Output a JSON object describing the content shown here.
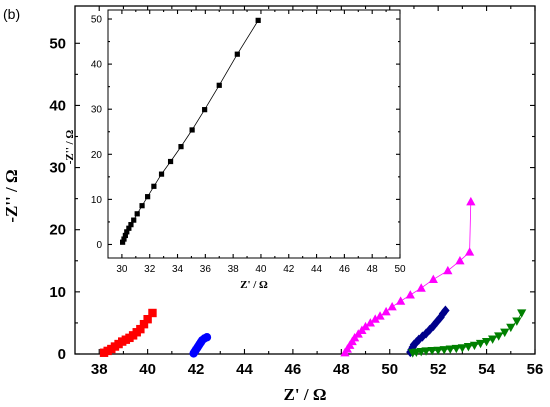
{
  "panel_label": "(b)",
  "chart_data": [
    {
      "type": "scatter",
      "role": "main",
      "xlabel": "Z' / Ω",
      "ylabel": "-Z'' / Ω",
      "xlim": [
        37,
        56
      ],
      "ylim": [
        0,
        56
      ],
      "xticks": [
        38,
        40,
        42,
        44,
        46,
        48,
        50,
        52,
        54,
        56
      ],
      "yticks": [
        0,
        10,
        20,
        30,
        40,
        50
      ],
      "series": [
        {
          "marker": "square",
          "color": "#ff0000",
          "connect": false,
          "points": [
            [
              38.2,
              0.2
            ],
            [
              38.35,
              0.5
            ],
            [
              38.5,
              0.8
            ],
            [
              38.65,
              1.2
            ],
            [
              38.8,
              1.6
            ],
            [
              38.95,
              2.0
            ],
            [
              39.1,
              2.3
            ],
            [
              39.25,
              2.6
            ],
            [
              39.4,
              3.0
            ],
            [
              39.55,
              3.5
            ],
            [
              39.7,
              4.0
            ],
            [
              39.85,
              4.8
            ],
            [
              40.0,
              5.6
            ],
            [
              40.2,
              6.6
            ]
          ]
        },
        {
          "marker": "circle",
          "color": "#0000ff",
          "connect": false,
          "points": [
            [
              41.9,
              0.1
            ],
            [
              41.95,
              0.4
            ],
            [
              42.0,
              0.7
            ],
            [
              42.05,
              1.0
            ],
            [
              42.1,
              1.3
            ],
            [
              42.15,
              1.6
            ],
            [
              42.2,
              1.9
            ],
            [
              42.25,
              2.2
            ],
            [
              42.35,
              2.5
            ],
            [
              42.45,
              2.7
            ]
          ]
        },
        {
          "marker": "triangle-up",
          "color": "#ff00ff",
          "connect": true,
          "points": [
            [
              48.15,
              0.2
            ],
            [
              48.25,
              0.8
            ],
            [
              48.35,
              1.4
            ],
            [
              48.45,
              2.0
            ],
            [
              48.55,
              2.6
            ],
            [
              48.7,
              3.2
            ],
            [
              48.85,
              3.8
            ],
            [
              49.0,
              4.4
            ],
            [
              49.2,
              5.0
            ],
            [
              49.4,
              5.6
            ],
            [
              49.6,
              6.1
            ],
            [
              49.85,
              6.8
            ],
            [
              50.1,
              7.6
            ],
            [
              50.45,
              8.5
            ],
            [
              50.85,
              9.5
            ],
            [
              51.3,
              10.6
            ],
            [
              51.8,
              12.0
            ],
            [
              52.4,
              13.4
            ],
            [
              52.9,
              15.0
            ],
            [
              53.3,
              16.4
            ],
            [
              53.35,
              24.5
            ]
          ]
        },
        {
          "marker": "diamond",
          "color": "#00008b",
          "connect": true,
          "points": [
            [
              50.85,
              0.3
            ],
            [
              50.9,
              0.7
            ],
            [
              50.95,
              1.1
            ],
            [
              51.0,
              1.5
            ],
            [
              51.1,
              1.9
            ],
            [
              51.2,
              2.3
            ],
            [
              51.35,
              2.8
            ],
            [
              51.5,
              3.3
            ],
            [
              51.65,
              3.9
            ],
            [
              51.8,
              4.5
            ],
            [
              51.95,
              5.2
            ],
            [
              52.1,
              5.9
            ],
            [
              52.2,
              6.5
            ],
            [
              52.3,
              7.0
            ]
          ]
        },
        {
          "marker": "triangle-down",
          "color": "#008000",
          "connect": true,
          "points": [
            [
              50.95,
              0.2
            ],
            [
              51.1,
              0.3
            ],
            [
              51.3,
              0.4
            ],
            [
              51.5,
              0.5
            ],
            [
              51.75,
              0.55
            ],
            [
              52.0,
              0.6
            ],
            [
              52.25,
              0.7
            ],
            [
              52.5,
              0.8
            ],
            [
              52.75,
              0.9
            ],
            [
              53.0,
              1.0
            ],
            [
              53.25,
              1.2
            ],
            [
              53.5,
              1.4
            ],
            [
              53.75,
              1.7
            ],
            [
              54.0,
              2.0
            ],
            [
              54.25,
              2.4
            ],
            [
              54.5,
              2.9
            ],
            [
              54.75,
              3.5
            ],
            [
              55.0,
              4.3
            ],
            [
              55.25,
              5.3
            ],
            [
              55.45,
              6.6
            ]
          ]
        }
      ]
    },
    {
      "type": "scatter",
      "role": "inset",
      "xlabel": "Z' / Ω",
      "ylabel": "-Z'' / Ω",
      "xlim": [
        29,
        50
      ],
      "ylim": [
        -3,
        52
      ],
      "xticks": [
        30,
        32,
        34,
        36,
        38,
        40,
        42,
        44,
        46,
        48,
        50
      ],
      "yticks": [
        0,
        10,
        20,
        30,
        40,
        50
      ],
      "series": [
        {
          "marker": "square",
          "color": "#000000",
          "connect": true,
          "points": [
            [
              30.05,
              0.5
            ],
            [
              30.15,
              1.2
            ],
            [
              30.25,
              2.0
            ],
            [
              30.35,
              2.8
            ],
            [
              30.5,
              3.6
            ],
            [
              30.65,
              4.4
            ],
            [
              30.85,
              5.4
            ],
            [
              31.1,
              6.8
            ],
            [
              31.45,
              8.6
            ],
            [
              31.85,
              10.6
            ],
            [
              32.3,
              12.9
            ],
            [
              32.85,
              15.6
            ],
            [
              33.5,
              18.4
            ],
            [
              34.25,
              21.7
            ],
            [
              35.05,
              25.4
            ],
            [
              35.95,
              29.9
            ],
            [
              37.0,
              35.3
            ],
            [
              38.3,
              42.2
            ],
            [
              39.8,
              49.7
            ]
          ]
        }
      ]
    }
  ]
}
